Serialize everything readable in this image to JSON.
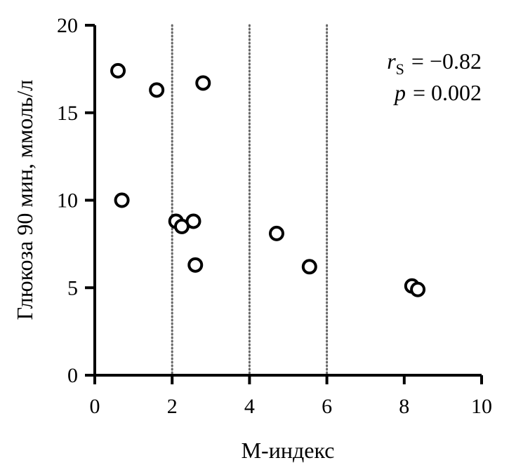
{
  "chart_data": {
    "type": "scatter",
    "xlabel": "М-индекс",
    "ylabel": "Глюкоза 90 мин, ммоль/л",
    "xlim": [
      0,
      10
    ],
    "ylim": [
      0,
      20
    ],
    "x_ticks": [
      "0",
      "2",
      "4",
      "6",
      "8",
      "10"
    ],
    "y_ticks": [
      "0",
      "5",
      "10",
      "15",
      "20"
    ],
    "reference_lines_x": [
      2,
      4,
      6
    ],
    "grid": false,
    "marker": "open-circle",
    "points": [
      {
        "x": 0.6,
        "y": 17.4
      },
      {
        "x": 0.7,
        "y": 10.0
      },
      {
        "x": 1.6,
        "y": 16.3
      },
      {
        "x": 2.8,
        "y": 16.7
      },
      {
        "x": 2.1,
        "y": 8.8
      },
      {
        "x": 2.25,
        "y": 8.5
      },
      {
        "x": 2.55,
        "y": 8.8
      },
      {
        "x": 2.6,
        "y": 6.3
      },
      {
        "x": 4.7,
        "y": 8.1
      },
      {
        "x": 5.55,
        "y": 6.2
      },
      {
        "x": 8.2,
        "y": 5.1
      },
      {
        "x": 8.35,
        "y": 4.9
      }
    ],
    "annotations": {
      "rs_symbol": "r",
      "rs_sub": "S",
      "rs_value": "= −0.82",
      "p_symbol": "p",
      "p_value": "= 0.002"
    }
  }
}
